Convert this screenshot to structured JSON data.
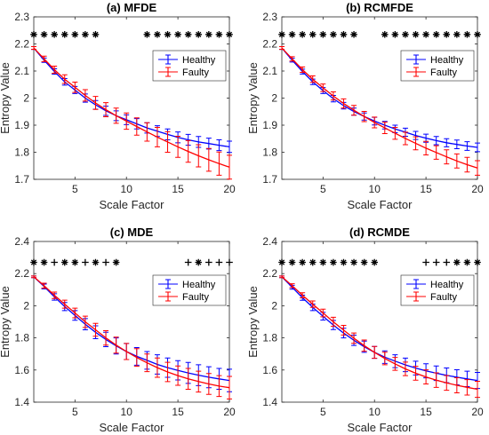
{
  "figure": {
    "x_label": "Scale Factor",
    "y_label": "Entropy Value"
  },
  "legend": {
    "healthy": "Healthy",
    "faulty": "Faulty"
  },
  "colors": {
    "healthy": "#0000ff",
    "faulty": "#ff0000",
    "marker": "#000000",
    "axis": "#262626"
  },
  "chart_data": [
    {
      "type": "line",
      "title": "(a) MFDE",
      "xlabel": "Scale Factor",
      "ylabel": "Entropy Value",
      "xlim": [
        1,
        20
      ],
      "ylim": [
        1.7,
        2.3
      ],
      "xticks": [
        5,
        10,
        15,
        20
      ],
      "yticks": [
        1.7,
        1.8,
        1.9,
        2.0,
        2.1,
        2.2,
        2.3
      ],
      "ytick_labels": [
        "1.7",
        "1.8",
        "1.9",
        "2",
        "2.1",
        "2.2",
        "2.3"
      ],
      "legend_position": "upper-right",
      "grid": false,
      "x": [
        1,
        2,
        3,
        4,
        5,
        6,
        7,
        8,
        9,
        10,
        11,
        12,
        13,
        14,
        15,
        16,
        17,
        18,
        19,
        20
      ],
      "series": [
        {
          "name": "Healthy",
          "values": [
            2.185,
            2.14,
            2.098,
            2.06,
            2.03,
            2.0,
            1.975,
            1.953,
            1.935,
            1.92,
            1.905,
            1.89,
            1.878,
            1.866,
            1.855,
            1.846,
            1.838,
            1.832,
            1.826,
            1.82
          ],
          "errors": [
            0.005,
            0.008,
            0.01,
            0.012,
            0.013,
            0.015,
            0.016,
            0.017,
            0.018,
            0.018,
            0.019,
            0.019,
            0.02,
            0.02,
            0.02,
            0.02,
            0.02,
            0.02,
            0.02,
            0.021
          ]
        },
        {
          "name": "Faulty",
          "values": [
            2.185,
            2.145,
            2.105,
            2.07,
            2.04,
            2.01,
            1.982,
            1.957,
            1.935,
            1.915,
            1.895,
            1.875,
            1.856,
            1.838,
            1.82,
            1.803,
            1.787,
            1.772,
            1.758,
            1.745
          ],
          "errors": [
            0.005,
            0.01,
            0.013,
            0.016,
            0.019,
            0.021,
            0.024,
            0.026,
            0.028,
            0.03,
            0.032,
            0.034,
            0.036,
            0.038,
            0.039,
            0.04,
            0.041,
            0.042,
            0.043,
            0.044
          ]
        }
      ],
      "markers": [
        {
          "x": 1,
          "symbol": "*"
        },
        {
          "x": 2,
          "symbol": "*"
        },
        {
          "x": 3,
          "symbol": "*"
        },
        {
          "x": 4,
          "symbol": "*"
        },
        {
          "x": 5,
          "symbol": "*"
        },
        {
          "x": 6,
          "symbol": "*"
        },
        {
          "x": 7,
          "symbol": "*"
        },
        {
          "x": 12,
          "symbol": "*"
        },
        {
          "x": 13,
          "symbol": "*"
        },
        {
          "x": 14,
          "symbol": "*"
        },
        {
          "x": 15,
          "symbol": "*"
        },
        {
          "x": 16,
          "symbol": "*"
        },
        {
          "x": 17,
          "symbol": "*"
        },
        {
          "x": 18,
          "symbol": "*"
        },
        {
          "x": 19,
          "symbol": "*"
        },
        {
          "x": 20,
          "symbol": "*"
        }
      ],
      "marker_y": 2.235
    },
    {
      "type": "line",
      "title": "(b) RCMFDE",
      "xlabel": "Scale Factor",
      "ylabel": "Entropy Value",
      "xlim": [
        1,
        20
      ],
      "ylim": [
        1.7,
        2.3
      ],
      "xticks": [
        5,
        10,
        15,
        20
      ],
      "yticks": [
        1.7,
        1.8,
        1.9,
        2.0,
        2.1,
        2.2,
        2.3
      ],
      "ytick_labels": [
        "1.7",
        "1.8",
        "1.9",
        "2",
        "2.1",
        "2.2",
        "2.3"
      ],
      "legend_position": "upper-right",
      "grid": false,
      "x": [
        1,
        2,
        3,
        4,
        5,
        6,
        7,
        8,
        9,
        10,
        11,
        12,
        13,
        14,
        15,
        16,
        17,
        18,
        19,
        20
      ],
      "series": [
        {
          "name": "Healthy",
          "values": [
            2.185,
            2.14,
            2.098,
            2.06,
            2.028,
            1.998,
            1.972,
            1.95,
            1.932,
            1.915,
            1.9,
            1.886,
            1.874,
            1.862,
            1.852,
            1.843,
            1.835,
            1.829,
            1.823,
            1.818
          ],
          "errors": [
            0.005,
            0.007,
            0.009,
            0.01,
            0.011,
            0.012,
            0.012,
            0.013,
            0.013,
            0.014,
            0.014,
            0.014,
            0.015,
            0.015,
            0.015,
            0.015,
            0.015,
            0.016,
            0.016,
            0.016
          ]
        },
        {
          "name": "Faulty",
          "values": [
            2.185,
            2.145,
            2.105,
            2.07,
            2.038,
            2.008,
            1.98,
            1.955,
            1.932,
            1.91,
            1.89,
            1.87,
            1.851,
            1.833,
            1.815,
            1.799,
            1.783,
            1.768,
            1.754,
            1.742
          ],
          "errors": [
            0.005,
            0.008,
            0.01,
            0.012,
            0.014,
            0.015,
            0.017,
            0.018,
            0.019,
            0.02,
            0.021,
            0.022,
            0.023,
            0.024,
            0.025,
            0.025,
            0.026,
            0.026,
            0.027,
            0.027
          ]
        }
      ],
      "markers": [
        {
          "x": 1,
          "symbol": "*"
        },
        {
          "x": 2,
          "symbol": "*"
        },
        {
          "x": 3,
          "symbol": "*"
        },
        {
          "x": 4,
          "symbol": "*"
        },
        {
          "x": 5,
          "symbol": "*"
        },
        {
          "x": 6,
          "symbol": "*"
        },
        {
          "x": 7,
          "symbol": "*"
        },
        {
          "x": 8,
          "symbol": "*"
        },
        {
          "x": 11,
          "symbol": "*"
        },
        {
          "x": 12,
          "symbol": "*"
        },
        {
          "x": 13,
          "symbol": "*"
        },
        {
          "x": 14,
          "symbol": "*"
        },
        {
          "x": 15,
          "symbol": "*"
        },
        {
          "x": 16,
          "symbol": "*"
        },
        {
          "x": 17,
          "symbol": "*"
        },
        {
          "x": 18,
          "symbol": "*"
        },
        {
          "x": 19,
          "symbol": "*"
        },
        {
          "x": 20,
          "symbol": "*"
        }
      ],
      "marker_y": 2.235
    },
    {
      "type": "line",
      "title": "(c) MDE",
      "xlabel": "Scale Factor",
      "ylabel": "Entropy Value",
      "xlim": [
        1,
        20
      ],
      "ylim": [
        1.4,
        2.4
      ],
      "xticks": [
        5,
        10,
        15,
        20
      ],
      "yticks": [
        1.4,
        1.6,
        1.8,
        2.0,
        2.2,
        2.4
      ],
      "ytick_labels": [
        "1.4",
        "1.6",
        "1.8",
        "2",
        "2.2",
        "2.4"
      ],
      "legend_position": "upper-right",
      "grid": false,
      "x": [
        1,
        2,
        3,
        4,
        5,
        6,
        7,
        8,
        9,
        10,
        11,
        12,
        13,
        14,
        15,
        16,
        17,
        18,
        19,
        20
      ],
      "series": [
        {
          "name": "Healthy",
          "values": [
            2.18,
            2.12,
            2.055,
            1.995,
            1.94,
            1.885,
            1.835,
            1.79,
            1.75,
            1.715,
            1.685,
            1.66,
            1.635,
            1.615,
            1.598,
            1.582,
            1.568,
            1.555,
            1.545,
            1.535
          ],
          "errors": [
            0.005,
            0.015,
            0.02,
            0.025,
            0.03,
            0.035,
            0.04,
            0.045,
            0.05,
            0.05,
            0.055,
            0.055,
            0.06,
            0.06,
            0.06,
            0.065,
            0.065,
            0.065,
            0.065,
            0.07
          ]
        },
        {
          "name": "Faulty",
          "values": [
            2.18,
            2.125,
            2.065,
            2.01,
            1.955,
            1.9,
            1.85,
            1.8,
            1.755,
            1.715,
            1.678,
            1.645,
            1.615,
            1.588,
            1.565,
            1.545,
            1.528,
            1.513,
            1.5,
            1.49
          ],
          "errors": [
            0.005,
            0.015,
            0.02,
            0.025,
            0.03,
            0.035,
            0.04,
            0.045,
            0.05,
            0.05,
            0.055,
            0.055,
            0.06,
            0.06,
            0.06,
            0.065,
            0.065,
            0.065,
            0.065,
            0.07
          ]
        }
      ],
      "markers": [
        {
          "x": 1,
          "symbol": "*"
        },
        {
          "x": 2,
          "symbol": "*"
        },
        {
          "x": 3,
          "symbol": "+"
        },
        {
          "x": 4,
          "symbol": "*"
        },
        {
          "x": 5,
          "symbol": "*"
        },
        {
          "x": 6,
          "symbol": "+"
        },
        {
          "x": 7,
          "symbol": "*"
        },
        {
          "x": 8,
          "symbol": "+"
        },
        {
          "x": 9,
          "symbol": "*"
        },
        {
          "x": 16,
          "symbol": "+"
        },
        {
          "x": 17,
          "symbol": "*"
        },
        {
          "x": 18,
          "symbol": "+"
        },
        {
          "x": 19,
          "symbol": "+"
        },
        {
          "x": 20,
          "symbol": "+"
        }
      ],
      "marker_y": 2.27
    },
    {
      "type": "line",
      "title": "(d) RCMDE",
      "xlabel": "Scale Factor",
      "ylabel": "Entropy Value",
      "xlim": [
        1,
        20
      ],
      "ylim": [
        1.4,
        2.4
      ],
      "xticks": [
        5,
        10,
        15,
        20
      ],
      "yticks": [
        1.4,
        1.6,
        1.8,
        2.0,
        2.2,
        2.4
      ],
      "ytick_labels": [
        "1.4",
        "1.6",
        "1.8",
        "2",
        "2.2",
        "2.4"
      ],
      "legend_position": "upper-right",
      "grid": false,
      "x": [
        1,
        2,
        3,
        4,
        5,
        6,
        7,
        8,
        9,
        10,
        11,
        12,
        13,
        14,
        15,
        16,
        17,
        18,
        19,
        20
      ],
      "series": [
        {
          "name": "Healthy",
          "values": [
            2.18,
            2.115,
            2.05,
            1.99,
            1.935,
            1.88,
            1.83,
            1.785,
            1.745,
            1.71,
            1.68,
            1.655,
            1.632,
            1.612,
            1.595,
            1.58,
            1.567,
            1.555,
            1.545,
            1.535
          ],
          "errors": [
            0.005,
            0.012,
            0.016,
            0.02,
            0.024,
            0.028,
            0.03,
            0.032,
            0.035,
            0.037,
            0.039,
            0.04,
            0.042,
            0.043,
            0.044,
            0.045,
            0.046,
            0.047,
            0.048,
            0.05
          ]
        },
        {
          "name": "Faulty",
          "values": [
            2.18,
            2.125,
            2.065,
            2.01,
            1.955,
            1.9,
            1.848,
            1.798,
            1.752,
            1.71,
            1.672,
            1.638,
            1.607,
            1.58,
            1.557,
            1.537,
            1.52,
            1.505,
            1.492,
            1.48
          ],
          "errors": [
            0.005,
            0.012,
            0.016,
            0.02,
            0.024,
            0.028,
            0.03,
            0.032,
            0.035,
            0.037,
            0.039,
            0.04,
            0.042,
            0.043,
            0.044,
            0.045,
            0.046,
            0.047,
            0.048,
            0.05
          ]
        }
      ],
      "markers": [
        {
          "x": 1,
          "symbol": "*"
        },
        {
          "x": 2,
          "symbol": "*"
        },
        {
          "x": 3,
          "symbol": "*"
        },
        {
          "x": 4,
          "symbol": "*"
        },
        {
          "x": 5,
          "symbol": "*"
        },
        {
          "x": 6,
          "symbol": "*"
        },
        {
          "x": 7,
          "symbol": "*"
        },
        {
          "x": 8,
          "symbol": "*"
        },
        {
          "x": 9,
          "symbol": "*"
        },
        {
          "x": 10,
          "symbol": "*"
        },
        {
          "x": 15,
          "symbol": "+"
        },
        {
          "x": 16,
          "symbol": "+"
        },
        {
          "x": 17,
          "symbol": "+"
        },
        {
          "x": 18,
          "symbol": "*"
        },
        {
          "x": 19,
          "symbol": "*"
        },
        {
          "x": 20,
          "symbol": "*"
        }
      ],
      "marker_y": 2.27
    }
  ]
}
